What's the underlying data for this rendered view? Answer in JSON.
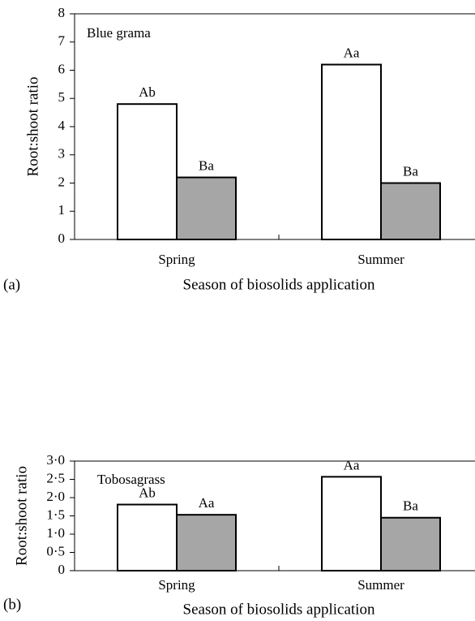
{
  "chart_data": [
    {
      "type": "bar",
      "panel_label": "(a)",
      "annotation": "Blue grama",
      "ylabel": "Root:shoot ratio",
      "xlabel": "Season of biosolids application",
      "categories": [
        "Spring",
        "Summer"
      ],
      "series": [
        {
          "color": "#ffffff",
          "values": [
            4.8,
            6.2
          ],
          "letters": [
            "Ab",
            "Aa"
          ]
        },
        {
          "color": "#a6a6a6",
          "values": [
            2.2,
            2.0
          ],
          "letters": [
            "Ba",
            "Ba"
          ]
        }
      ],
      "ylim": [
        0,
        8
      ],
      "yticks": [
        0,
        1,
        2,
        3,
        4,
        5,
        6,
        7,
        8
      ]
    },
    {
      "type": "bar",
      "panel_label": "(b)",
      "annotation": "Tobosagrass",
      "ylabel": "Root:shoot ratio",
      "xlabel": "Season of biosolids application",
      "categories": [
        "Spring",
        "Summer"
      ],
      "series": [
        {
          "color": "#ffffff",
          "values": [
            1.81,
            2.57
          ],
          "letters": [
            "Ab",
            "Aa"
          ]
        },
        {
          "color": "#a6a6a6",
          "values": [
            1.53,
            1.45
          ],
          "letters": [
            "Aa",
            "Ba"
          ]
        }
      ],
      "ylim": [
        0,
        3
      ],
      "yticks": [
        0,
        {
          "value": 0.5,
          "label": "0·5"
        },
        {
          "value": 1,
          "label": "1·0"
        },
        {
          "value": 1.5,
          "label": "1·5"
        },
        {
          "value": 2,
          "label": "2·0"
        },
        {
          "value": 2.5,
          "label": "2·5"
        },
        {
          "value": 3,
          "label": "3·0"
        }
      ]
    }
  ]
}
